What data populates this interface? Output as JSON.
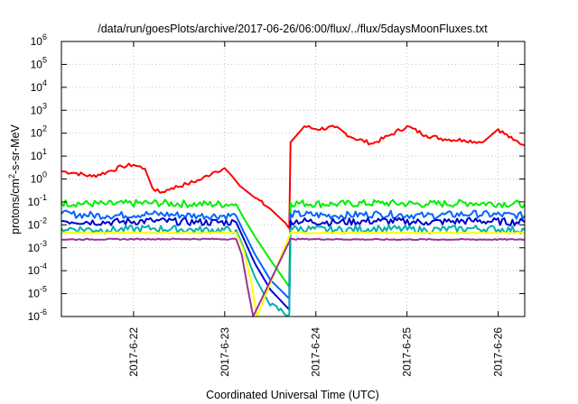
{
  "chart_data": {
    "type": "line",
    "title": "/data/run/goesPlots/archive/2017-06-26/06:00/flux/../flux/5daysMoonFluxes.txt",
    "xlabel": "Coordinated Universal Time (UTC)",
    "ylabel_parts": [
      "protons/cm",
      "2",
      "-s-sr-MeV"
    ],
    "y_scale": "log",
    "ylim": [
      1e-06,
      1000000.0
    ],
    "y_ticks": [
      {
        "value": 1e-06,
        "base": "10",
        "exp": "-6"
      },
      {
        "value": 1e-05,
        "base": "10",
        "exp": "-5"
      },
      {
        "value": 0.0001,
        "base": "10",
        "exp": "-4"
      },
      {
        "value": 0.001,
        "base": "10",
        "exp": "-3"
      },
      {
        "value": 0.01,
        "base": "10",
        "exp": "-2"
      },
      {
        "value": 0.1,
        "base": "10",
        "exp": "-1"
      },
      {
        "value": 1.0,
        "base": "10",
        "exp": "0"
      },
      {
        "value": 10.0,
        "base": "10",
        "exp": "1"
      },
      {
        "value": 100.0,
        "base": "10",
        "exp": "2"
      },
      {
        "value": 1000.0,
        "base": "10",
        "exp": "3"
      },
      {
        "value": 10000.0,
        "base": "10",
        "exp": "4"
      },
      {
        "value": 100000.0,
        "base": "10",
        "exp": "5"
      },
      {
        "value": 1000000.0,
        "base": "10",
        "exp": "6"
      }
    ],
    "xlim": [
      "2017-06-21T05:00",
      "2017-06-26T07:00"
    ],
    "x_ticks": [
      {
        "value": "2017-06-22T00:00",
        "label": "2017-6-22"
      },
      {
        "value": "2017-06-23T00:00",
        "label": "2017-6-23"
      },
      {
        "value": "2017-06-24T00:00",
        "label": "2017-6-24"
      },
      {
        "value": "2017-06-25T00:00",
        "label": "2017-6-25"
      },
      {
        "value": "2017-06-26T00:00",
        "label": "2017-6-26"
      }
    ],
    "grid": true,
    "series": [
      {
        "color": "#ff0000",
        "points": [
          [
            "2017-06-21T05:00",
            2.2
          ],
          [
            "2017-06-21T09:00",
            1.8
          ],
          [
            "2017-06-21T13:00",
            1.3
          ],
          [
            "2017-06-21T17:00",
            2.0
          ],
          [
            "2017-06-21T21:00",
            3.5
          ],
          [
            "2017-06-22T00:00",
            4.2
          ],
          [
            "2017-06-22T03:00",
            2.8
          ],
          [
            "2017-06-22T05:00",
            0.4
          ],
          [
            "2017-06-22T07:00",
            0.25
          ],
          [
            "2017-06-22T10:00",
            0.4
          ],
          [
            "2017-06-22T14:00",
            0.6
          ],
          [
            "2017-06-22T18:00",
            1.0
          ],
          [
            "2017-06-22T21:00",
            2.0
          ],
          [
            "2017-06-23T00:00",
            3.0
          ],
          [
            "2017-06-23T02:00",
            1.3
          ],
          [
            "2017-06-23T04:00",
            0.5
          ],
          [
            "2017-06-23T08:00",
            0.15
          ],
          [
            "2017-06-23T12:00",
            0.05
          ],
          [
            "2017-06-23T16:00",
            0.012
          ],
          [
            "2017-06-23T17:00",
            0.007
          ],
          [
            "2017-06-23T17:20",
            40
          ],
          [
            "2017-06-23T21:00",
            200
          ],
          [
            "2017-06-24T00:00",
            150
          ],
          [
            "2017-06-24T05:00",
            180
          ],
          [
            "2017-06-24T10:00",
            60
          ],
          [
            "2017-06-24T15:00",
            35
          ],
          [
            "2017-06-24T20:00",
            90
          ],
          [
            "2017-06-25T00:00",
            200
          ],
          [
            "2017-06-25T05:00",
            80
          ],
          [
            "2017-06-25T10:00",
            55
          ],
          [
            "2017-06-25T15:00",
            50
          ],
          [
            "2017-06-25T20:00",
            40
          ],
          [
            "2017-06-26T00:00",
            150
          ],
          [
            "2017-06-26T04:00",
            50
          ],
          [
            "2017-06-26T07:00",
            30
          ]
        ]
      },
      {
        "color": "#00ee00",
        "points": [
          [
            "2017-06-21T05:00",
            0.09
          ],
          [
            "2017-06-21T17:00",
            0.08
          ],
          [
            "2017-06-22T05:00",
            0.09
          ],
          [
            "2017-06-22T17:00",
            0.08
          ],
          [
            "2017-06-23T03:00",
            0.08
          ],
          [
            "2017-06-23T05:00",
            0.02
          ],
          [
            "2017-06-23T08:00",
            0.003
          ],
          [
            "2017-06-23T12:00",
            0.0003
          ],
          [
            "2017-06-23T17:00",
            2e-05
          ],
          [
            "2017-06-23T17:20",
            0.09
          ],
          [
            "2017-06-24T05:00",
            0.08
          ],
          [
            "2017-06-24T17:00",
            0.09
          ],
          [
            "2017-06-25T05:00",
            0.08
          ],
          [
            "2017-06-25T17:00",
            0.09
          ],
          [
            "2017-06-26T07:00",
            0.08
          ]
        ]
      },
      {
        "color": "#0066ff",
        "points": [
          [
            "2017-06-21T05:00",
            0.03
          ],
          [
            "2017-06-21T17:00",
            0.025
          ],
          [
            "2017-06-22T05:00",
            0.03
          ],
          [
            "2017-06-22T17:00",
            0.025
          ],
          [
            "2017-06-23T03:00",
            0.025
          ],
          [
            "2017-06-23T05:00",
            0.005
          ],
          [
            "2017-06-23T08:00",
            0.0005
          ],
          [
            "2017-06-23T12:00",
            4e-05
          ],
          [
            "2017-06-23T17:00",
            6e-06
          ],
          [
            "2017-06-23T17:20",
            0.03
          ],
          [
            "2017-06-24T05:00",
            0.025
          ],
          [
            "2017-06-24T17:00",
            0.03
          ],
          [
            "2017-06-25T05:00",
            0.025
          ],
          [
            "2017-06-25T17:00",
            0.03
          ],
          [
            "2017-06-26T07:00",
            0.025
          ]
        ]
      },
      {
        "color": "#0000cc",
        "points": [
          [
            "2017-06-21T05:00",
            0.015
          ],
          [
            "2017-06-21T17:00",
            0.013
          ],
          [
            "2017-06-22T05:00",
            0.015
          ],
          [
            "2017-06-22T17:00",
            0.013
          ],
          [
            "2017-06-23T03:00",
            0.013
          ],
          [
            "2017-06-23T05:00",
            0.0025
          ],
          [
            "2017-06-23T08:00",
            0.0002
          ],
          [
            "2017-06-23T12:00",
            1.5e-05
          ],
          [
            "2017-06-23T17:00",
            2e-06
          ],
          [
            "2017-06-23T17:20",
            0.015
          ],
          [
            "2017-06-24T05:00",
            0.013
          ],
          [
            "2017-06-24T17:00",
            0.015
          ],
          [
            "2017-06-25T05:00",
            0.013
          ],
          [
            "2017-06-25T17:00",
            0.015
          ],
          [
            "2017-06-26T07:00",
            0.013
          ]
        ]
      },
      {
        "color": "#00b0b0",
        "points": [
          [
            "2017-06-21T05:00",
            0.007
          ],
          [
            "2017-06-21T17:00",
            0.006
          ],
          [
            "2017-06-22T05:00",
            0.007
          ],
          [
            "2017-06-22T17:00",
            0.006
          ],
          [
            "2017-06-23T03:00",
            0.006
          ],
          [
            "2017-06-23T05:00",
            0.001
          ],
          [
            "2017-06-23T08:00",
            5e-05
          ],
          [
            "2017-06-23T12:00",
            3e-06
          ],
          [
            "2017-06-23T17:00",
            1.2e-06
          ],
          [
            "2017-06-23T17:20",
            0.007
          ],
          [
            "2017-06-24T05:00",
            0.006
          ],
          [
            "2017-06-24T17:00",
            0.007
          ],
          [
            "2017-06-25T05:00",
            0.006
          ],
          [
            "2017-06-25T17:00",
            0.007
          ],
          [
            "2017-06-26T07:00",
            0.006
          ]
        ]
      },
      {
        "color": "#ffff00",
        "points": [
          [
            "2017-06-21T05:00",
            0.0045
          ],
          [
            "2017-06-22T05:00",
            0.0045
          ],
          [
            "2017-06-23T03:00",
            0.0045
          ],
          [
            "2017-06-23T05:00",
            0.0008
          ],
          [
            "2017-06-23T07:00",
            3e-05
          ],
          [
            "2017-06-23T08:30",
            1e-06
          ],
          [
            "2017-06-23T17:20",
            0.0045
          ],
          [
            "2017-06-24T17:00",
            0.0045
          ],
          [
            "2017-06-26T07:00",
            0.0045
          ]
        ]
      },
      {
        "color": "#993399",
        "points": [
          [
            "2017-06-21T05:00",
            0.0023
          ],
          [
            "2017-06-22T05:00",
            0.0024
          ],
          [
            "2017-06-23T03:00",
            0.0024
          ],
          [
            "2017-06-23T04:30",
            0.0005
          ],
          [
            "2017-06-23T06:00",
            2e-05
          ],
          [
            "2017-06-23T07:30",
            1e-06
          ],
          [
            "2017-06-23T17:20",
            0.0024
          ],
          [
            "2017-06-24T17:00",
            0.0023
          ],
          [
            "2017-06-26T07:00",
            0.0023
          ]
        ]
      }
    ]
  }
}
